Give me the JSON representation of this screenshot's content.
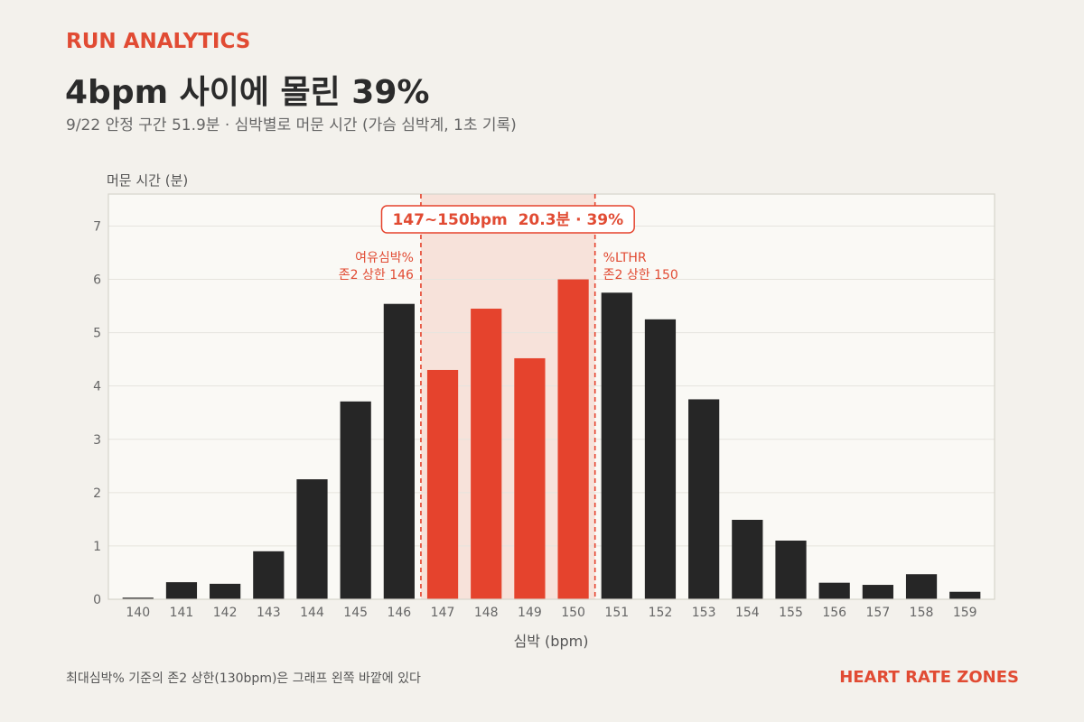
{
  "header": {
    "kicker": "RUN ANALYTICS",
    "title": "4bpm 사이에 몰린 39%",
    "subtitle": "9/22 안정 구간 51.9분 · 심박별로 머문 시간 (가슴 심박계, 1초 기록)"
  },
  "chart_data": {
    "type": "bar",
    "x": [
      140,
      141,
      142,
      143,
      144,
      145,
      146,
      147,
      148,
      149,
      150,
      151,
      152,
      153,
      154,
      155,
      156,
      157,
      158,
      159
    ],
    "values": [
      0.03,
      0.32,
      0.29,
      0.9,
      2.25,
      3.71,
      5.54,
      4.3,
      5.45,
      4.52,
      6.0,
      5.75,
      5.25,
      3.75,
      1.49,
      1.1,
      0.31,
      0.27,
      0.47,
      0.14
    ],
    "highlight_x": [
      147,
      148,
      149,
      150
    ],
    "highlight_range": [
      146.5,
      150.5
    ],
    "xlabel": "심박 (bpm)",
    "ylabel": "머문 시간 (분)",
    "ylim": [
      0,
      7.6
    ],
    "yticks": [
      0,
      1,
      2,
      3,
      4,
      5,
      6,
      7
    ],
    "grid": true,
    "callout": {
      "label": "147~150bpm  20.3분 · 39%"
    },
    "reference_lines": [
      {
        "x": 146.5,
        "label_lines": [
          "여유심박%",
          "존2 상한 146"
        ]
      },
      {
        "x": 150.5,
        "label_lines": [
          "%LTHR",
          "존2 상한 150"
        ]
      }
    ],
    "colors": {
      "bar": "#262626",
      "highlight_bar": "#e5432d",
      "highlight_band": "#f7e2da",
      "accent": "#e14b33",
      "plot_background": "#faf9f5",
      "plot_border": "#d6d4cc",
      "grid": "#e6e4de",
      "tick": "#666666",
      "axis_label": "#555555"
    }
  },
  "footer": {
    "note": "최대심박% 기준의 존2 상한(130bpm)은 그래프 왼쪽 바깥에 있다",
    "brand": "HEART RATE ZONES"
  }
}
